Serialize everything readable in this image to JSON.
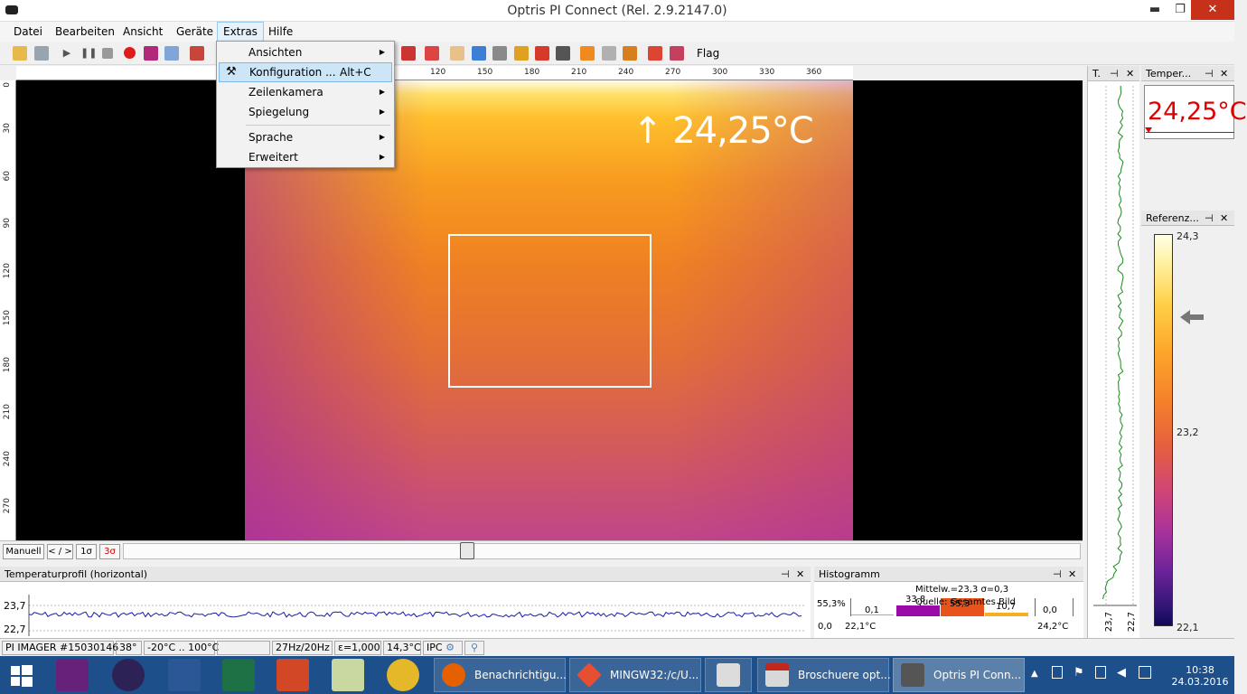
{
  "window": {
    "title": "Optris PI Connect (Rel. 2.9.2147.0)",
    "minimize": "▬",
    "restore": "❐",
    "close": "✕"
  },
  "menu": [
    "Datei",
    "Bearbeiten",
    "Ansicht",
    "Geräte",
    "Extras",
    "Hilfe"
  ],
  "toolbar": {
    "flag_label": "Flag"
  },
  "extras_menu": {
    "items": [
      {
        "label": "Ansichten",
        "submenu": true
      },
      {
        "label": "Konfiguration ...",
        "shortcut": "Alt+C",
        "highlighted": true,
        "icon": "tools-icon"
      },
      {
        "label": "Zeilenkamera",
        "submenu": true
      },
      {
        "label": "Spiegelung",
        "submenu": true
      },
      {
        "label": "Sprache",
        "submenu": true
      },
      {
        "label": "Erweitert",
        "submenu": true
      }
    ]
  },
  "ruler": {
    "top_ticks": [
      "120",
      "150",
      "180",
      "210",
      "240",
      "270",
      "300",
      "330",
      "360"
    ],
    "left_ticks": [
      "0",
      "30",
      "60",
      "90",
      "120",
      "150",
      "180",
      "210",
      "240",
      "270"
    ]
  },
  "viewer": {
    "max_temp": "↑ 24,25°C"
  },
  "scale_controls": {
    "manual": "Manuell",
    "range": "< / >",
    "sigma1": "1σ",
    "sigma3": "3σ"
  },
  "profile_panel": {
    "title": "Temperaturprofil (horizontal)",
    "y_top": "23,7",
    "y_bottom": "22,7"
  },
  "histogram_panel": {
    "title": "Histogramm",
    "stats": "Mittelw.=23,3 σ=0,3",
    "source": "Quelle: Gesamtes Bild",
    "max_pct": "55,3%",
    "zero_pct": "0,0",
    "left_temp": "22,1°C",
    "right_temp": "24,2°C",
    "bins": [
      {
        "label": "0,1",
        "color": "#ffffff"
      },
      {
        "label": "33,8",
        "color": "#9a0aa8"
      },
      {
        "label": "55,3",
        "color": "#e8531c"
      },
      {
        "label": "10,7",
        "color": "#ffffff"
      },
      {
        "label": "0,0",
        "color": "#ffffff"
      }
    ]
  },
  "side_panels": {
    "time_header": "T.",
    "temp_header": "Temper...",
    "temp_value": "24,25°C",
    "ref_header": "Referenz...",
    "pin": "⊣",
    "close": "✕",
    "strip_labels": [
      "23,7",
      "22,7"
    ]
  },
  "colorbar": {
    "max": "24,3",
    "mid": "23,2",
    "min": "22,1"
  },
  "status": {
    "device": "PI IMAGER #15030146",
    "fov": "38°",
    "range": "-20°C .. 100°C",
    "blank": "",
    "framerate": "27Hz/20Hz",
    "emissivity": "ε=1,000",
    "ambient": "14,3°C",
    "ipc": "IPC"
  },
  "taskbar": {
    "tasks": [
      {
        "label": "Benachrichtigu...",
        "icon": "firefox-icon"
      },
      {
        "label": "MINGW32:/c/U...",
        "icon": "git-icon"
      },
      {
        "label": "",
        "icon": "pdf24-icon"
      },
      {
        "label": "Broschuere opt...",
        "icon": "pdf-icon"
      },
      {
        "label": "Optris PI Conn...",
        "icon": "camera-icon"
      }
    ],
    "time": "10:38",
    "date": "24.03.2016"
  },
  "colors": {
    "accent": "#e00000",
    "taskbar": "#1d4f8a",
    "close": "#c7311a"
  }
}
